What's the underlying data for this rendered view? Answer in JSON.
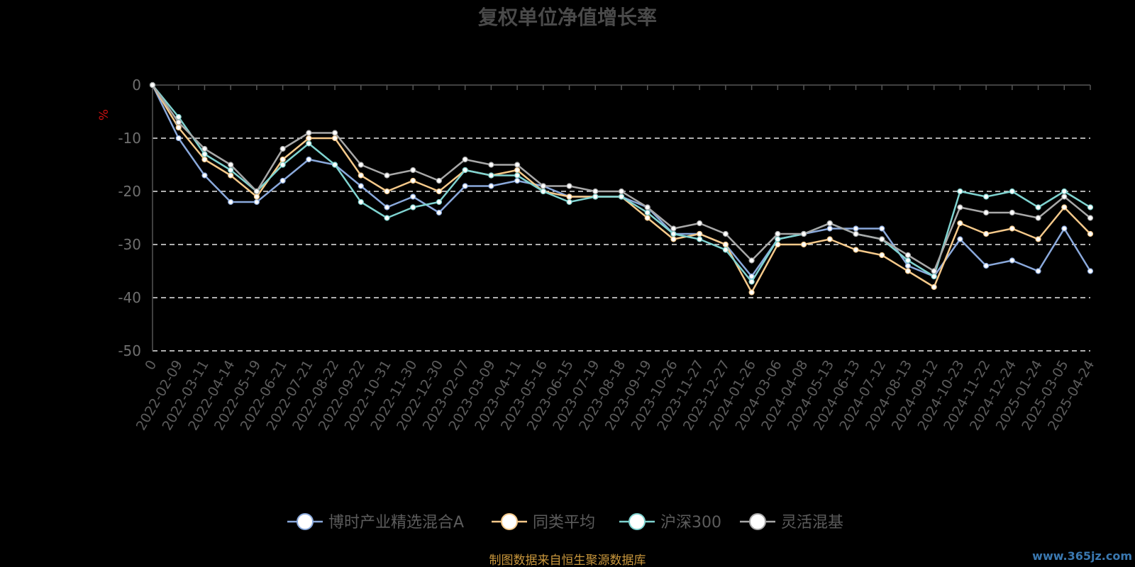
{
  "chart_data": {
    "type": "line",
    "title": "复权单位净值增长率",
    "ylabel": "%",
    "ylim": [
      -50,
      0
    ],
    "yticks": [
      0,
      -10,
      -20,
      -30,
      -40,
      -50
    ],
    "grid": true,
    "legend_position": "bottom-center",
    "x_tick_labels": [
      "0",
      "2022-02-09",
      "2022-03-11",
      "2022-04-14",
      "2022-05-19",
      "2022-06-21",
      "2022-07-21",
      "2022-08-22",
      "2022-09-22",
      "2022-10-31",
      "2022-11-30",
      "2022-12-30",
      "2023-02-07",
      "2023-03-09",
      "2023-04-11",
      "2023-05-16",
      "2023-06-15",
      "2023-07-19",
      "2023-08-18",
      "2023-09-19",
      "2023-10-26",
      "2023-11-27",
      "2023-12-27",
      "2024-01-26",
      "2024-03-06",
      "2024-04-08",
      "2024-05-13",
      "2024-06-13",
      "2024-07-12",
      "2024-08-13",
      "2024-09-12",
      "2024-10-23",
      "2024-11-22",
      "2024-12-24",
      "2025-01-24",
      "2025-03-05",
      "2025-04-24"
    ],
    "series": [
      {
        "name": "博时产业精选混合A",
        "color": "#8aa9dc",
        "values": [
          0,
          -10,
          -17,
          -22,
          -22,
          -18,
          -14,
          -15,
          -19,
          -23,
          -21,
          -24,
          -19,
          -19,
          -18,
          -19,
          -21,
          -21,
          -21,
          -23,
          -28,
          -28,
          -30,
          -36,
          -29,
          -28,
          -27,
          -27,
          -27,
          -34,
          -36,
          -29,
          -34,
          -33,
          -35,
          -27,
          -35
        ]
      },
      {
        "name": "同类平均",
        "color": "#f5c98a",
        "values": [
          0,
          -8,
          -14,
          -17,
          -21,
          -14,
          -10,
          -10,
          -17,
          -20,
          -18,
          -20,
          -16,
          -17,
          -16,
          -20,
          -21,
          -21,
          -21,
          -25,
          -29,
          -28,
          -30,
          -39,
          -30,
          -30,
          -29,
          -31,
          -32,
          -35,
          -38,
          -26,
          -28,
          -27,
          -29,
          -23,
          -28
        ]
      },
      {
        "name": "沪深300",
        "color": "#7fd3d0",
        "values": [
          0,
          -6,
          -13,
          -16,
          -20,
          -15,
          -11,
          -15,
          -22,
          -25,
          -23,
          -22,
          -16,
          -17,
          -17,
          -20,
          -22,
          -21,
          -21,
          -24,
          -28,
          -29,
          -31,
          -37,
          -29,
          -28,
          -26,
          -28,
          -29,
          -33,
          -36,
          -20,
          -21,
          -20,
          -23,
          -20,
          -23
        ]
      },
      {
        "name": "灵活混基",
        "color": "#a8a8a8",
        "values": [
          0,
          -7,
          -12,
          -15,
          -20,
          -12,
          -9,
          -9,
          -15,
          -17,
          -16,
          -18,
          -14,
          -15,
          -15,
          -19,
          -19,
          -20,
          -20,
          -23,
          -27,
          -26,
          -28,
          -33,
          -28,
          -28,
          -26,
          -28,
          -29,
          -32,
          -35,
          -23,
          -24,
          -24,
          -25,
          -21,
          -25
        ]
      }
    ],
    "source_text": "制图数据来自恒生聚源数据库",
    "watermark": "www.365jz.com"
  }
}
